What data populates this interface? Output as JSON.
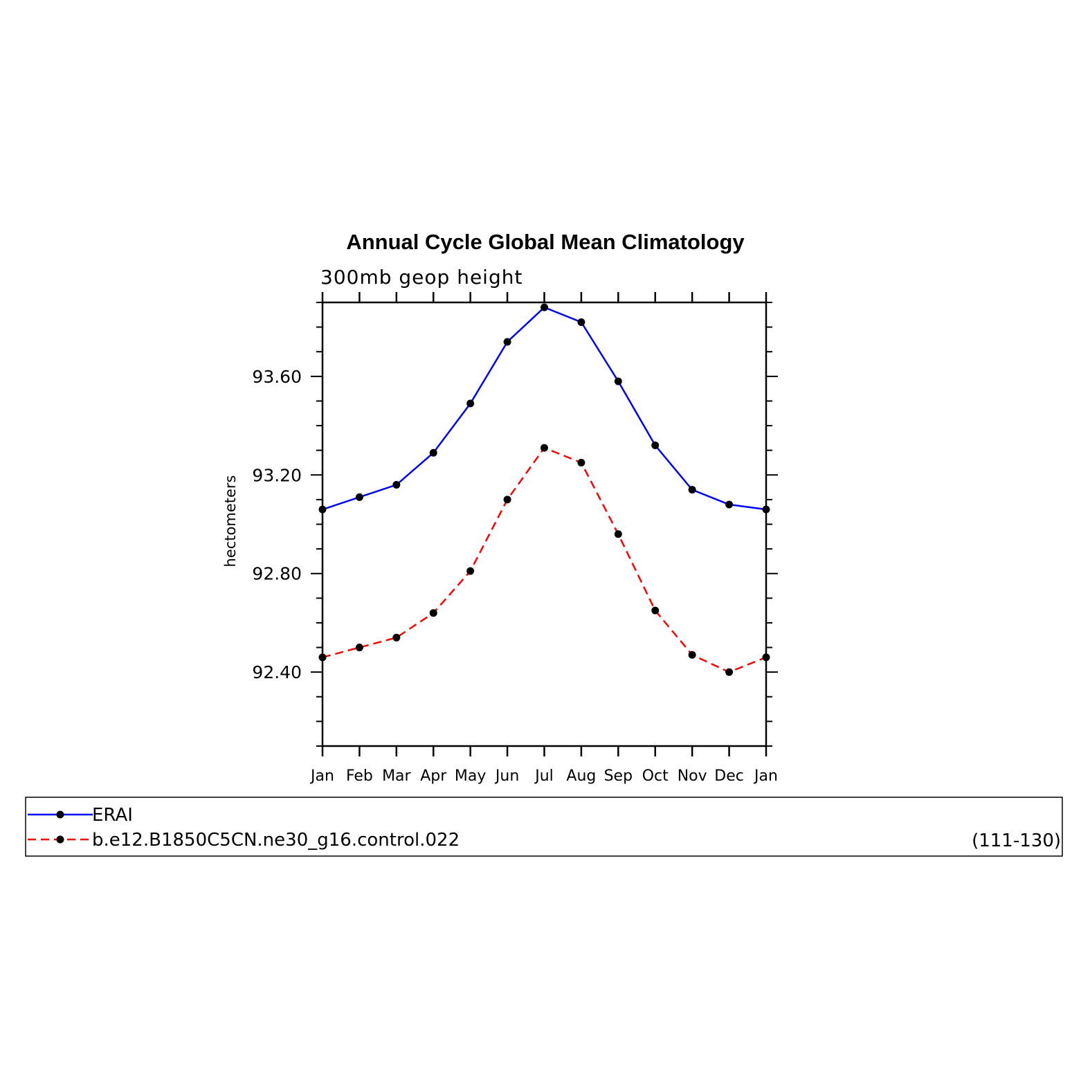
{
  "chart_data": {
    "type": "line",
    "title": "Annual Cycle Global Mean Climatology",
    "subtitle": "300mb  geop  height",
    "xlabel": "",
    "ylabel": "hectometers",
    "categories": [
      "Jan",
      "Feb",
      "Mar",
      "Apr",
      "May",
      "Jun",
      "Jul",
      "Aug",
      "Sep",
      "Oct",
      "Nov",
      "Dec",
      "Jan"
    ],
    "ylim": [
      92.1,
      93.9
    ],
    "yticks": [
      92.4,
      92.8,
      93.2,
      93.6
    ],
    "ytick_labels": [
      "92.40",
      "92.80",
      "93.20",
      "93.60"
    ],
    "grid": false,
    "legend_position": "bottom",
    "series": [
      {
        "name": "ERAI",
        "color": "#0000ff",
        "dash": "solid",
        "marker_color": "#000000",
        "values": [
          93.06,
          93.11,
          93.16,
          93.29,
          93.49,
          93.74,
          93.88,
          93.82,
          93.58,
          93.32,
          93.14,
          93.08,
          93.06
        ]
      },
      {
        "name": "b.e12.B1850C5CN.ne30_g16.control.022",
        "color": "#ff0000",
        "dash": "dashed",
        "marker_color": "#000000",
        "values": [
          92.46,
          92.5,
          92.54,
          92.64,
          92.81,
          93.1,
          93.31,
          93.25,
          92.96,
          92.65,
          92.47,
          92.4,
          92.46
        ]
      }
    ],
    "annotation": "(111-130)"
  }
}
